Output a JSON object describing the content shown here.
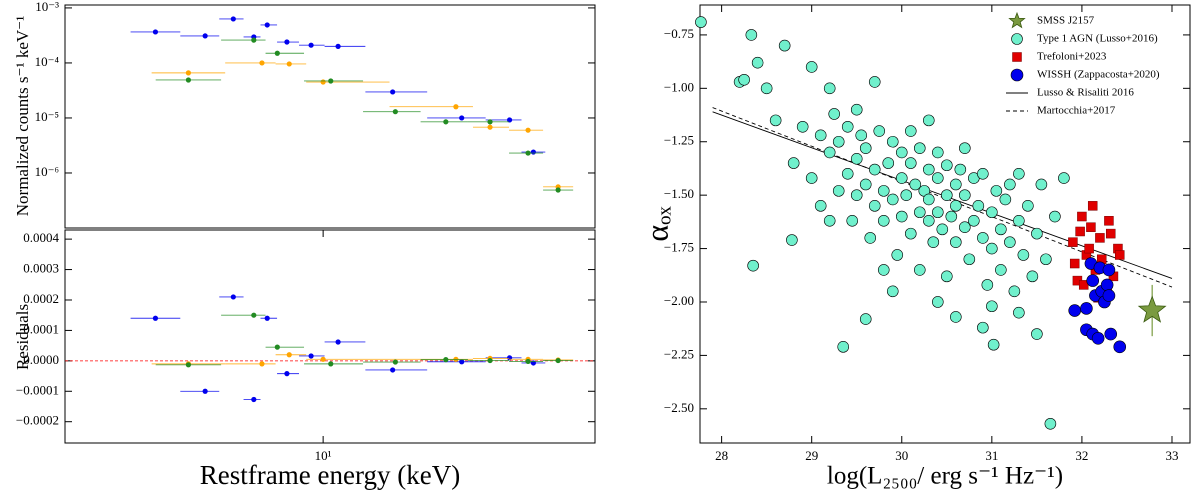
{
  "chart_data": [
    {
      "type": "scatter",
      "ylabel": "Normalized counts s⁻¹ keV⁻¹",
      "xlog": true,
      "ylog": true,
      "x_bins": true,
      "xlim": [
        2.65,
        40.5
      ],
      "ylim": [
        1e-07,
        0.00113
      ],
      "yticks": [
        {
          "value": 1e-06,
          "label": "10⁻⁶"
        },
        {
          "value": 1e-05,
          "label": "10⁻⁵"
        },
        {
          "value": 0.0001,
          "label": "10⁻⁴"
        },
        {
          "value": 0.001,
          "label": "10⁻³"
        }
      ],
      "series": [
        {
          "color": "#0000ee",
          "marker": "circle",
          "x": [
            4.22,
            5.45,
            6.3,
            7.0,
            7.5,
            8.3,
            9.4,
            10.8,
            14.3,
            20.4,
            26.1,
            29.5
          ],
          "values": [
            0.000366,
            0.00031,
            0.00063,
            0.000297,
            0.00049,
            0.00024,
            0.00021,
            0.0002,
            2.97e-05,
            1e-05,
            9.2e-06,
            2.4e-06
          ]
        },
        {
          "color": "#ffa500",
          "marker": "circle",
          "x": [
            5.0,
            7.3,
            8.4,
            10.0,
            19.8,
            23.6,
            28.7,
            33.5
          ],
          "values": [
            6.6e-05,
            0.0001,
            9.6e-05,
            4.5e-05,
            1.6e-05,
            6.8e-06,
            6e-06,
            5.6e-07
          ]
        },
        {
          "color": "#228b22",
          "marker": "circle",
          "x": [
            5.0,
            7.0,
            7.9,
            10.4,
            14.5,
            18.8,
            23.6,
            28.7,
            33.5
          ],
          "values": [
            4.9e-05,
            0.00026,
            0.00015,
            4.7e-05,
            1.3e-05,
            8.5e-06,
            8.5e-06,
            2.3e-06,
            4.9e-07
          ]
        }
      ]
    },
    {
      "type": "scatter",
      "ylabel": "Residuals",
      "xlabel": "Restframe energy (keV)",
      "xlog": true,
      "x_bins": true,
      "xlim": [
        2.65,
        40.5
      ],
      "ylim": [
        -0.00027,
        0.00043
      ],
      "xticks": [
        {
          "value": 10,
          "label": "10¹"
        }
      ],
      "yticks": [
        {
          "value": -0.0002,
          "label": "−0.0002"
        },
        {
          "value": -0.0001,
          "label": "−0.0001"
        },
        {
          "value": 0,
          "label": "0.0000"
        },
        {
          "value": 0.0001,
          "label": "0.0001"
        },
        {
          "value": 0.0002,
          "label": "0.0002"
        },
        {
          "value": 0.0003,
          "label": "0.0003"
        },
        {
          "value": 0.0004,
          "label": "0.0004"
        }
      ],
      "reference_line": {
        "y": 0,
        "color": "#ff0000",
        "style": "dashed"
      },
      "series": [
        {
          "color": "#0000ee",
          "marker": "circle",
          "x": [
            4.22,
            5.45,
            6.3,
            7.0,
            7.5,
            8.3,
            9.4,
            10.8,
            14.3,
            20.4,
            26.1,
            29.5
          ],
          "values": [
            0.00014,
            -0.0001,
            0.00021,
            -0.000127,
            0.00014,
            -4.2e-05,
            1.6e-05,
            6.2e-05,
            -3e-05,
            -3e-06,
            1e-05,
            -7e-06
          ]
        },
        {
          "color": "#ffa500",
          "marker": "circle",
          "x": [
            5.0,
            7.3,
            8.4,
            10.0,
            19.8,
            23.6,
            28.7,
            33.5
          ],
          "values": [
            -1e-05,
            -1e-05,
            2e-05,
            5e-06,
            5e-06,
            8e-06,
            5e-06,
            3e-06
          ]
        },
        {
          "color": "#228b22",
          "marker": "circle",
          "x": [
            5.0,
            7.0,
            7.9,
            10.4,
            14.5,
            18.8,
            23.6,
            28.7,
            33.5
          ],
          "values": [
            -1.3e-05,
            0.00015,
            4.5e-05,
            -1e-05,
            -4e-06,
            4e-06,
            1e-06,
            -2e-06,
            1e-06
          ]
        }
      ]
    },
    {
      "type": "scatter",
      "xlabel": "log(L₂₅₀₀/ erg s⁻¹ Hz⁻¹)",
      "ylabel": "αₒₓ",
      "legend": "upper right",
      "xlim": [
        27.76,
        33.2
      ],
      "ylim": [
        -2.66,
        -0.61
      ],
      "xticks": [
        28,
        29,
        30,
        31,
        32,
        33
      ],
      "yticks": [
        {
          "value": -2.5,
          "label": "−2.50"
        },
        {
          "value": -2.25,
          "label": "−2.25"
        },
        {
          "value": -2,
          "label": "−2.00"
        },
        {
          "value": -1.75,
          "label": "−1.75"
        },
        {
          "value": -1.5,
          "label": "−1.50"
        },
        {
          "value": -1.25,
          "label": "−1.25"
        },
        {
          "value": -1,
          "label": "−1.00"
        },
        {
          "value": -0.75,
          "label": "−0.75"
        }
      ],
      "series": [
        {
          "name": "SMSS J2157",
          "color": "#7a9a40",
          "marker": "star",
          "x": [
            32.78
          ],
          "values": [
            -2.04
          ],
          "yerr": [
            0.12
          ]
        },
        {
          "name": "Type 1 AGN (Lusso+2016)",
          "color": "#70f0cc",
          "marker": "circle",
          "x": [
            27.77,
            28.2,
            28.25,
            28.33,
            28.35,
            28.4,
            28.5,
            28.7,
            28.78,
            29.0,
            29.2,
            29.35,
            29.6,
            29.7,
            31.65,
            31.5,
            31.02,
            30.6,
            30.9,
            31.3,
            28.6,
            28.8,
            28.9,
            29.0,
            29.1,
            29.1,
            29.2,
            29.25,
            29.3,
            29.3,
            29.4,
            29.4,
            29.45,
            29.5,
            29.5,
            29.55,
            29.6,
            29.6,
            29.65,
            29.7,
            29.7,
            29.75,
            29.8,
            29.8,
            29.85,
            29.9,
            29.9,
            29.95,
            30.0,
            30.0,
            30.0,
            30.05,
            30.1,
            30.1,
            30.15,
            30.2,
            30.2,
            30.2,
            30.25,
            30.3,
            30.3,
            30.3,
            30.35,
            30.4,
            30.4,
            30.4,
            30.45,
            30.5,
            30.5,
            30.5,
            30.55,
            30.6,
            30.6,
            30.6,
            30.65,
            30.7,
            30.7,
            30.75,
            30.8,
            30.8,
            30.85,
            30.9,
            30.9,
            30.95,
            31.0,
            31.0,
            31.05,
            31.1,
            31.1,
            31.15,
            31.2,
            31.2,
            31.25,
            31.3,
            31.35,
            31.4,
            31.45,
            31.5,
            31.55,
            31.6,
            31.7,
            31.8,
            29.2,
            29.5,
            29.8,
            30.1,
            30.4,
            30.7,
            31.0,
            31.3,
            29.9,
            30.3
          ],
          "values": [
            -0.69,
            -0.97,
            -0.96,
            -0.75,
            -1.83,
            -0.88,
            -1.0,
            -0.8,
            -1.71,
            -0.9,
            -1.0,
            -2.21,
            -2.08,
            -0.97,
            -2.57,
            -2.15,
            -2.2,
            -2.07,
            -2.12,
            -2.05,
            -1.15,
            -1.35,
            -1.18,
            -1.42,
            -1.22,
            -1.55,
            -1.3,
            -1.12,
            -1.48,
            -1.25,
            -1.4,
            -1.18,
            -1.62,
            -1.33,
            -1.5,
            -1.22,
            -1.45,
            -1.28,
            -1.7,
            -1.38,
            -1.55,
            -1.2,
            -1.48,
            -1.62,
            -1.35,
            -1.52,
            -1.25,
            -1.78,
            -1.42,
            -1.6,
            -1.3,
            -1.5,
            -1.68,
            -1.35,
            -1.45,
            -1.58,
            -1.28,
            -1.85,
            -1.48,
            -1.62,
            -1.38,
            -1.52,
            -1.72,
            -1.42,
            -1.58,
            -1.3,
            -1.66,
            -1.5,
            -1.88,
            -1.36,
            -1.6,
            -1.45,
            -1.72,
            -1.55,
            -1.38,
            -1.65,
            -1.5,
            -1.8,
            -1.42,
            -1.62,
            -1.55,
            -1.7,
            -1.4,
            -1.92,
            -1.58,
            -1.75,
            -1.48,
            -1.66,
            -1.85,
            -1.52,
            -1.72,
            -1.45,
            -1.95,
            -1.62,
            -1.78,
            -1.55,
            -1.88,
            -1.68,
            -1.45,
            -1.8,
            -1.6,
            -1.42,
            -1.62,
            -1.1,
            -1.85,
            -1.2,
            -2.0,
            -1.28,
            -2.02,
            -1.4,
            -1.95,
            -1.15
          ]
        },
        {
          "name": "Trefoloni+2023",
          "color": "#e00000",
          "marker": "square",
          "x": [
            31.9,
            31.95,
            32.0,
            32.05,
            32.1,
            32.15,
            32.2,
            32.25,
            32.3,
            32.35,
            32.4,
            31.92,
            32.02,
            32.12,
            32.22,
            32.32,
            31.98,
            32.18,
            32.28,
            32.42,
            32.08
          ],
          "values": [
            -1.72,
            -1.9,
            -1.6,
            -1.78,
            -1.65,
            -1.85,
            -1.7,
            -1.95,
            -1.62,
            -1.88,
            -1.75,
            -1.82,
            -1.92,
            -1.55,
            -1.8,
            -1.68,
            -1.67,
            -1.98,
            -1.93,
            -1.78,
            -1.75
          ]
        },
        {
          "name": "WISSH (Zappacosta+2020)",
          "color": "#0000ee",
          "marker": "circle",
          "x": [
            31.92,
            32.05,
            32.1,
            32.12,
            32.15,
            32.2,
            32.22,
            32.25,
            32.28,
            32.3,
            32.3,
            32.32,
            32.05,
            32.12,
            32.42,
            32.18
          ],
          "values": [
            -2.04,
            -2.13,
            -1.82,
            -1.9,
            -1.97,
            -1.84,
            -1.95,
            -2.0,
            -1.92,
            -1.85,
            -1.97,
            -2.15,
            -2.03,
            -2.15,
            -2.21,
            -2.17
          ]
        },
        {
          "name": "Lusso & Risaliti 2016",
          "color": "#000000",
          "line": "solid",
          "x": [
            27.9,
            33.0
          ],
          "values": [
            -1.11,
            -1.89
          ]
        },
        {
          "name": "Martocchia+2017",
          "color": "#000000",
          "line": "dashed",
          "x": [
            27.9,
            33.0
          ],
          "values": [
            -1.09,
            -1.93
          ]
        }
      ]
    }
  ]
}
